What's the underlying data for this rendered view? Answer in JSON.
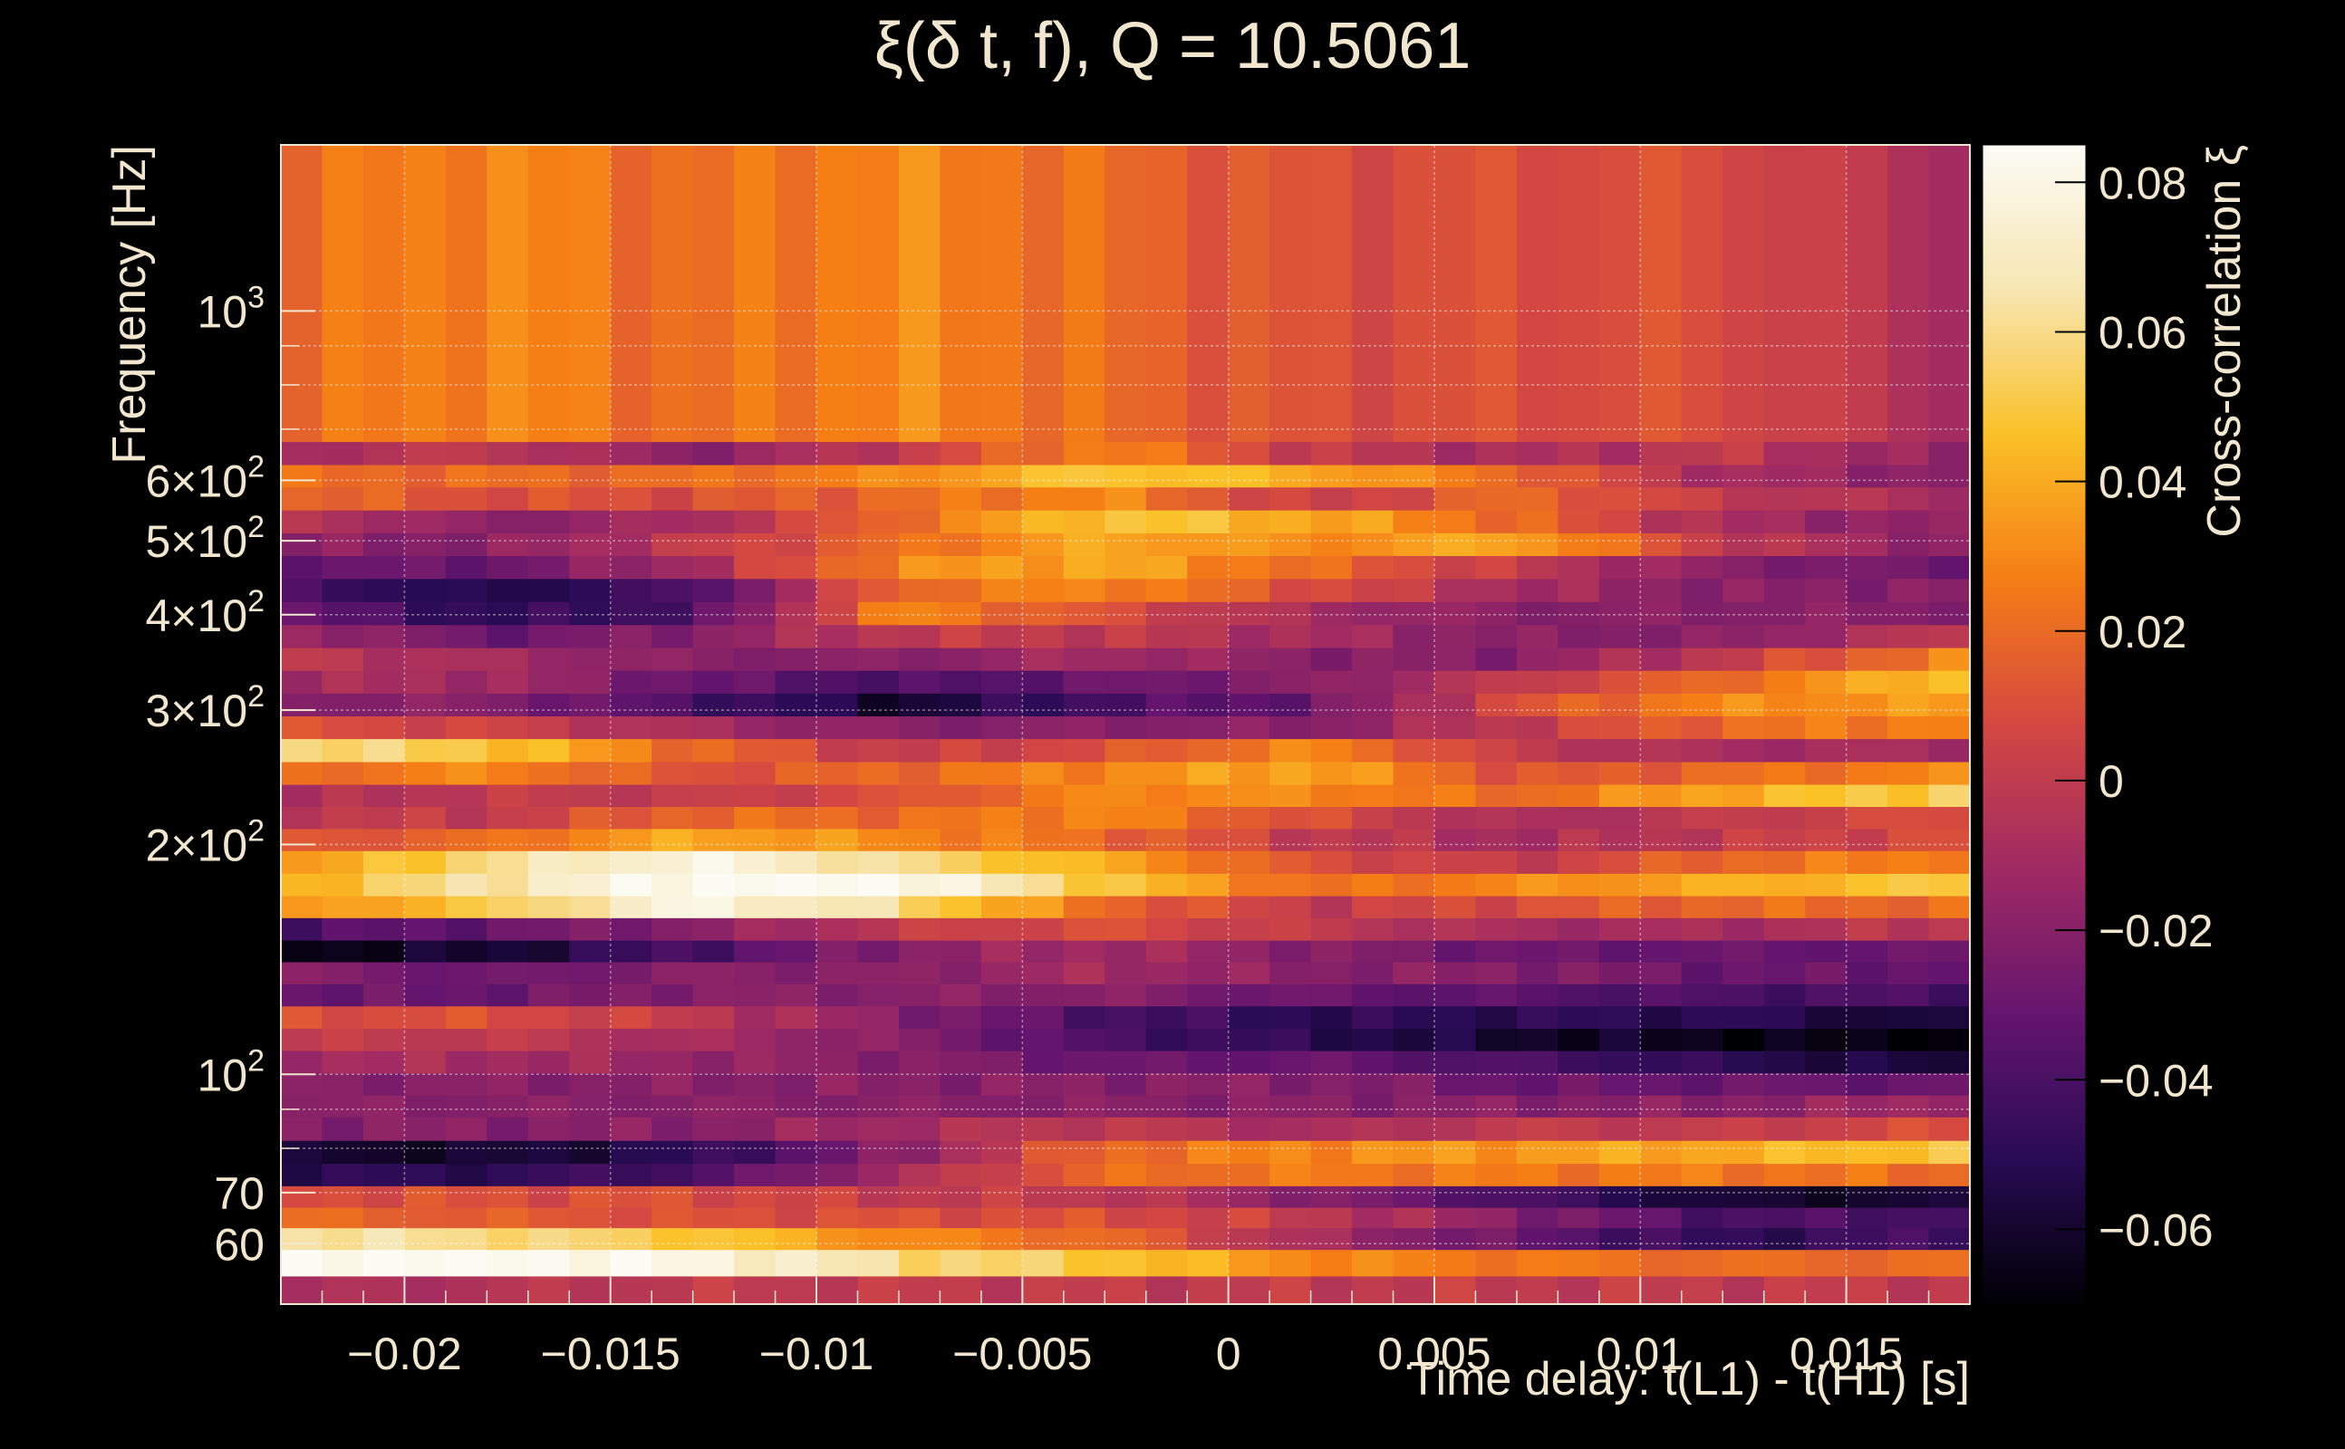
{
  "chart_data": {
    "type": "heatmap",
    "title": "ξ(δ t, f), Q = 10.5061",
    "xlabel": "Time delay: t(L1) - t(H1) [s]",
    "ylabel": "Frequency [Hz]",
    "colorbar_label": "Cross-correlation ξ",
    "x_scale": "linear",
    "y_scale": "log",
    "xlim": [
      -0.023,
      0.018
    ],
    "ylim": [
      50,
      1650
    ],
    "zlim": [
      -0.07,
      0.085
    ],
    "grid": true,
    "colormap": [
      "#000004",
      "#280b54",
      "#65156e",
      "#9f2a63",
      "#d44842",
      "#f57d15",
      "#fac127",
      "#f7e6b3",
      "#fcfcf5"
    ],
    "x_ticks": [
      {
        "value": -0.02,
        "label": "−0.02"
      },
      {
        "value": -0.015,
        "label": "−0.015"
      },
      {
        "value": -0.01,
        "label": "−0.01"
      },
      {
        "value": -0.005,
        "label": "−0.005"
      },
      {
        "value": 0,
        "label": "0"
      },
      {
        "value": 0.005,
        "label": "0.005"
      },
      {
        "value": 0.01,
        "label": "0.01"
      },
      {
        "value": 0.015,
        "label": "0.015"
      }
    ],
    "y_ticks": [
      {
        "value": 60,
        "label": "60"
      },
      {
        "value": 70,
        "label": "70"
      },
      {
        "value": 100,
        "mantissa": "10",
        "exponent": "2"
      },
      {
        "value": 200,
        "mantissa": "2×10",
        "exponent": "2"
      },
      {
        "value": 300,
        "mantissa": "3×10",
        "exponent": "2"
      },
      {
        "value": 400,
        "mantissa": "4×10",
        "exponent": "2"
      },
      {
        "value": 500,
        "mantissa": "5×10",
        "exponent": "2"
      },
      {
        "value": 600,
        "mantissa": "6×10",
        "exponent": "2"
      },
      {
        "value": 1000,
        "mantissa": "10",
        "exponent": "3"
      }
    ],
    "z_ticks": [
      {
        "value": 0.08,
        "label": "0.08"
      },
      {
        "value": 0.06,
        "label": "0.06"
      },
      {
        "value": 0.04,
        "label": "0.04"
      },
      {
        "value": 0.02,
        "label": "0.02"
      },
      {
        "value": 0,
        "label": "0"
      },
      {
        "value": -0.02,
        "label": "−0.02"
      },
      {
        "value": -0.04,
        "label": "−0.04"
      },
      {
        "value": -0.06,
        "label": "−0.06"
      }
    ],
    "cells": {
      "time_columns": 41,
      "frequency_rows": 37,
      "frequency_rows_bottom_to_top": true,
      "row_profiles": [
        {
          "frequency": 52,
          "values": [
            -0.01,
            -0.005,
            0.0,
            0.0,
            0.0,
            0.0,
            0.0,
            0.0,
            0.0
          ]
        },
        {
          "frequency": 57,
          "values": [
            0.085,
            0.085,
            0.08,
            0.06,
            0.05,
            0.03,
            0.025,
            0.02,
            0.02
          ]
        },
        {
          "frequency": 61,
          "values": [
            0.065,
            0.06,
            0.05,
            0.03,
            0.02,
            -0.01,
            -0.03,
            -0.05,
            -0.04
          ]
        },
        {
          "frequency": 65,
          "values": [
            0.02,
            0.015,
            0.01,
            0.01,
            0.01,
            0.0,
            -0.02,
            -0.04,
            -0.04
          ]
        },
        {
          "frequency": 69,
          "values": [
            0.01,
            0.01,
            0.01,
            0.0,
            0.0,
            -0.02,
            -0.04,
            -0.06,
            -0.06
          ]
        },
        {
          "frequency": 74,
          "values": [
            -0.05,
            -0.05,
            -0.04,
            -0.01,
            0.02,
            0.025,
            0.025,
            0.025,
            0.02
          ]
        },
        {
          "frequency": 79,
          "values": [
            -0.06,
            -0.06,
            -0.05,
            -0.02,
            0.02,
            0.03,
            0.035,
            0.04,
            0.05
          ]
        },
        {
          "frequency": 85,
          "values": [
            -0.02,
            -0.02,
            -0.02,
            -0.01,
            0.0,
            -0.01,
            0.0,
            0.0,
            0.01
          ]
        },
        {
          "frequency": 91,
          "values": [
            -0.02,
            -0.02,
            -0.02,
            -0.02,
            -0.02,
            -0.02,
            -0.02,
            -0.02,
            -0.01
          ]
        },
        {
          "frequency": 97,
          "values": [
            -0.02,
            -0.02,
            -0.02,
            -0.02,
            -0.02,
            -0.02,
            -0.03,
            -0.03,
            -0.03
          ]
        },
        {
          "frequency": 104,
          "values": [
            -0.01,
            -0.01,
            -0.015,
            -0.02,
            -0.03,
            -0.03,
            -0.04,
            -0.05,
            -0.06
          ]
        },
        {
          "frequency": 111,
          "values": [
            0.0,
            0.0,
            -0.01,
            -0.02,
            -0.04,
            -0.05,
            -0.06,
            -0.065,
            -0.07
          ]
        },
        {
          "frequency": 119,
          "values": [
            0.01,
            0.01,
            0.0,
            -0.02,
            -0.04,
            -0.05,
            -0.05,
            -0.05,
            -0.06
          ]
        },
        {
          "frequency": 127,
          "values": [
            -0.03,
            -0.03,
            -0.02,
            -0.02,
            -0.02,
            -0.03,
            -0.035,
            -0.04,
            -0.04
          ]
        },
        {
          "frequency": 136,
          "values": [
            -0.02,
            -0.03,
            -0.02,
            -0.02,
            -0.01,
            -0.02,
            -0.02,
            -0.03,
            -0.03
          ]
        },
        {
          "frequency": 145,
          "values": [
            -0.065,
            -0.06,
            -0.04,
            -0.02,
            -0.01,
            -0.02,
            -0.03,
            -0.03,
            -0.03
          ]
        },
        {
          "frequency": 155,
          "values": [
            -0.04,
            -0.03,
            -0.02,
            0.0,
            0.01,
            0.0,
            -0.01,
            -0.01,
            0.0
          ]
        },
        {
          "frequency": 166,
          "values": [
            0.03,
            0.05,
            0.08,
            0.06,
            0.02,
            0.0,
            0.01,
            0.02,
            0.02
          ]
        },
        {
          "frequency": 177,
          "values": [
            0.04,
            0.065,
            0.085,
            0.085,
            0.05,
            0.02,
            0.03,
            0.04,
            0.05
          ]
        },
        {
          "frequency": 190,
          "values": [
            0.03,
            0.06,
            0.08,
            0.06,
            0.04,
            0.01,
            0.0,
            0.02,
            0.03
          ]
        },
        {
          "frequency": 203,
          "values": [
            0.01,
            0.02,
            0.04,
            0.03,
            0.02,
            0.0,
            -0.01,
            0.0,
            0.01
          ]
        },
        {
          "frequency": 217,
          "values": [
            0.0,
            0.0,
            0.02,
            0.02,
            0.03,
            0.01,
            -0.01,
            0.0,
            0.01
          ]
        },
        {
          "frequency": 232,
          "values": [
            -0.01,
            0.0,
            0.0,
            0.01,
            0.03,
            0.03,
            0.02,
            0.04,
            0.055
          ]
        },
        {
          "frequency": 248,
          "values": [
            0.02,
            0.03,
            0.01,
            0.02,
            0.03,
            0.04,
            0.01,
            0.02,
            0.03
          ]
        },
        {
          "frequency": 266,
          "values": [
            0.06,
            0.05,
            0.02,
            0.0,
            0.01,
            0.03,
            0.0,
            -0.01,
            -0.01
          ]
        },
        {
          "frequency": 285,
          "values": [
            0.01,
            0.005,
            -0.01,
            -0.02,
            -0.02,
            -0.02,
            0.0,
            0.02,
            0.03
          ]
        },
        {
          "frequency": 305,
          "values": [
            -0.02,
            -0.02,
            -0.04,
            -0.06,
            -0.04,
            -0.03,
            0.01,
            0.03,
            0.035
          ]
        },
        {
          "frequency": 327,
          "values": [
            -0.01,
            -0.01,
            -0.03,
            -0.04,
            -0.03,
            -0.02,
            0.0,
            0.02,
            0.05
          ]
        },
        {
          "frequency": 350,
          "values": [
            0.0,
            -0.01,
            -0.02,
            -0.02,
            -0.01,
            -0.02,
            -0.02,
            0.0,
            0.03
          ]
        },
        {
          "frequency": 375,
          "values": [
            -0.01,
            -0.03,
            -0.02,
            0.0,
            0.0,
            -0.01,
            -0.02,
            -0.02,
            0.0
          ]
        },
        {
          "frequency": 402,
          "values": [
            -0.03,
            -0.05,
            -0.04,
            0.03,
            0.01,
            -0.01,
            -0.02,
            -0.02,
            -0.02
          ]
        },
        {
          "frequency": 431,
          "values": [
            -0.04,
            -0.055,
            -0.04,
            0.02,
            0.03,
            0.01,
            -0.01,
            -0.02,
            -0.02
          ]
        },
        {
          "frequency": 462,
          "values": [
            -0.03,
            -0.03,
            -0.01,
            0.03,
            0.04,
            0.02,
            0.0,
            -0.02,
            -0.03
          ]
        },
        {
          "frequency": 495,
          "values": [
            -0.02,
            -0.02,
            0.0,
            0.02,
            0.04,
            0.03,
            0.04,
            0.0,
            -0.02
          ]
        },
        {
          "frequency": 530,
          "values": [
            0.0,
            -0.02,
            -0.01,
            0.02,
            0.05,
            0.04,
            0.02,
            -0.01,
            -0.02
          ]
        },
        {
          "frequency": 568,
          "values": [
            0.02,
            0.01,
            0.01,
            0.02,
            0.03,
            0.0,
            0.02,
            0.0,
            -0.01
          ]
        },
        {
          "frequency": 609,
          "values": [
            0.02,
            0.02,
            0.02,
            0.03,
            0.05,
            0.04,
            0.02,
            -0.01,
            -0.02
          ]
        },
        {
          "frequency": 650,
          "values": [
            -0.01,
            0.0,
            -0.02,
            0.0,
            0.03,
            0.0,
            -0.01,
            0.0,
            -0.02
          ]
        },
        {
          "frequency": 700,
          "values": [
            0.02,
            0.03,
            0.02,
            0.03,
            0.02,
            0.01,
            0.01,
            0.01,
            -0.01
          ]
        }
      ],
      "profile_x": [
        -0.023,
        -0.018,
        -0.013,
        -0.008,
        -0.003,
        0.002,
        0.007,
        0.012,
        0.018
      ]
    }
  }
}
